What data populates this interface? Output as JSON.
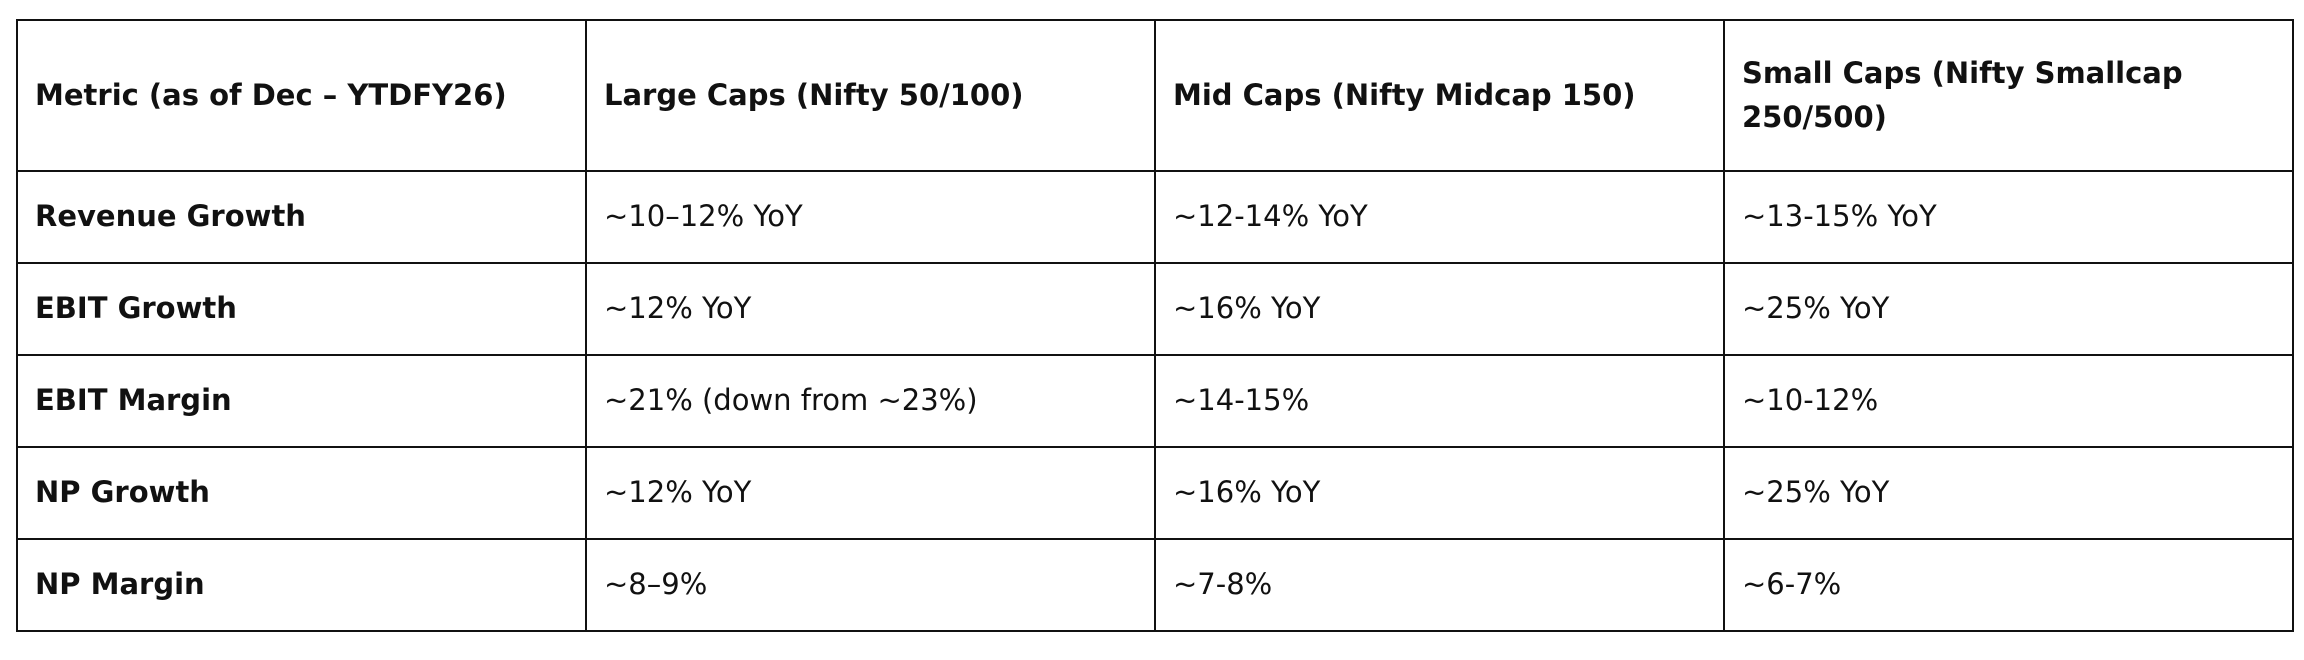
{
  "table": {
    "header": [
      "Metric (as of Dec – YTDFY26)",
      "Large Caps (Nifty 50/100)",
      "Mid Caps (Nifty Midcap 150)",
      "Small Caps (Nifty Smallcap 250/500)"
    ],
    "rows": [
      [
        "Revenue Growth",
        "~10–12% YoY",
        "~12-14% YoY",
        "~13-15% YoY"
      ],
      [
        "EBIT Growth",
        "~12% YoY",
        "~16% YoY",
        "~25% YoY"
      ],
      [
        "EBIT Margin",
        "~21% (down from ~23%)",
        "~14-15%",
        "~10-12%"
      ],
      [
        "NP Growth",
        "~12% YoY",
        "~16% YoY",
        "~25% YoY"
      ],
      [
        "NP Margin",
        "~8–9%",
        "~7-8%",
        "~6-7%"
      ]
    ]
  }
}
